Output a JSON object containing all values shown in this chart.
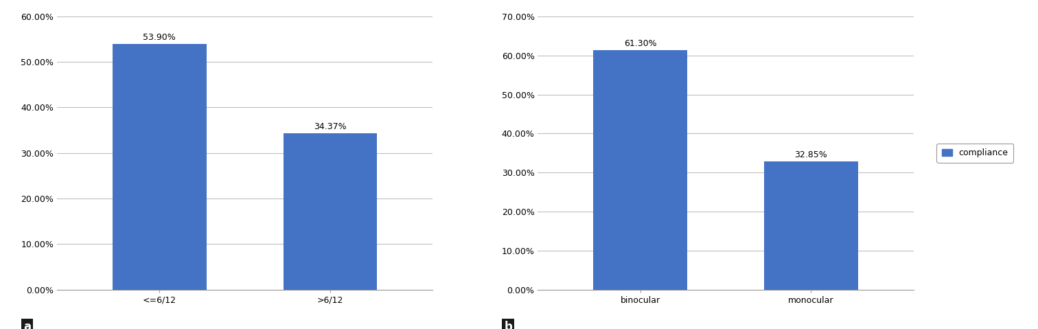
{
  "chart_a": {
    "categories": [
      "<=6/12",
      ">6/12"
    ],
    "values": [
      0.539,
      0.3437
    ],
    "bar_color": "#4472C4",
    "ylim": [
      0,
      0.6
    ],
    "yticks": [
      0.0,
      0.1,
      0.2,
      0.3,
      0.4,
      0.5,
      0.6
    ],
    "ytick_labels": [
      "0.00%",
      "10.00%",
      "20.00%",
      "30.00%",
      "40.00%",
      "50.00%",
      "60.00%"
    ],
    "bar_labels": [
      "53.90%",
      "34.37%"
    ],
    "label": "a"
  },
  "chart_b": {
    "categories": [
      "binocular",
      "monocular"
    ],
    "values": [
      0.613,
      0.3285
    ],
    "bar_color": "#4472C4",
    "ylim": [
      0,
      0.7
    ],
    "yticks": [
      0.0,
      0.1,
      0.2,
      0.3,
      0.4,
      0.5,
      0.6,
      0.7
    ],
    "ytick_labels": [
      "0.00%",
      "10.00%",
      "20.00%",
      "30.00%",
      "40.00%",
      "50.00%",
      "60.00%",
      "70.00%"
    ],
    "bar_labels": [
      "61.30%",
      "32.85%"
    ],
    "legend_label": "compliance",
    "label": "b"
  },
  "background_color": "#ffffff",
  "bar_width": 0.55,
  "grid_color": "#BFBFBF",
  "tick_fontsize": 9,
  "bar_label_fontsize": 9,
  "panel_label_fontsize": 12
}
